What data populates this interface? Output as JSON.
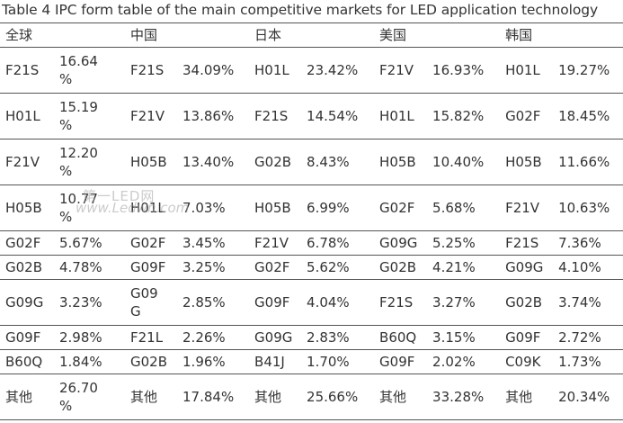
{
  "caption": "Table 4 IPC form table of the main competitive markets for LED application technology",
  "regions": [
    "全球",
    "中国",
    "日本",
    "美国",
    "韩国"
  ],
  "rows": [
    [
      [
        "F21S",
        "16.64\n%"
      ],
      [
        "F21S",
        "34.09%"
      ],
      [
        "H01L",
        "23.42%"
      ],
      [
        "F21V",
        "16.93%"
      ],
      [
        "H01L",
        "19.27%"
      ]
    ],
    [
      [
        "H01L",
        "15.19\n%"
      ],
      [
        "F21V",
        "13.86%"
      ],
      [
        "F21S",
        "14.54%"
      ],
      [
        "H01L",
        "15.82%"
      ],
      [
        "G02F",
        "18.45%"
      ]
    ],
    [
      [
        "F21V",
        "12.20\n%"
      ],
      [
        "H05B",
        "13.40%"
      ],
      [
        "G02B",
        "8.43%"
      ],
      [
        "H05B",
        "10.40%"
      ],
      [
        "H05B",
        "11.66%"
      ]
    ],
    [
      [
        "H05B",
        "10.77\n%"
      ],
      [
        "H01L",
        "7.03%"
      ],
      [
        "H05B",
        "6.99%"
      ],
      [
        "G02F",
        "5.68%"
      ],
      [
        "F21V",
        "10.63%"
      ]
    ],
    [
      [
        "G02F",
        "5.67%"
      ],
      [
        "G02F",
        "3.45%"
      ],
      [
        "F21V",
        "6.78%"
      ],
      [
        "G09G",
        "5.25%"
      ],
      [
        "F21S",
        "7.36%"
      ]
    ],
    [
      [
        "G02B",
        "4.78%"
      ],
      [
        "G09F",
        "3.25%"
      ],
      [
        "G02F",
        "5.62%"
      ],
      [
        "G02B",
        "4.21%"
      ],
      [
        "G09G",
        "4.10%"
      ]
    ],
    [
      [
        "G09G",
        "3.23%"
      ],
      [
        "G09\nG",
        "2.85%"
      ],
      [
        "G09F",
        "4.04%"
      ],
      [
        "F21S",
        "3.27%"
      ],
      [
        "G02B",
        "3.74%"
      ]
    ],
    [
      [
        "G09F",
        "2.98%"
      ],
      [
        "F21L",
        "2.26%"
      ],
      [
        "G09G",
        "2.83%"
      ],
      [
        "B60Q",
        "3.15%"
      ],
      [
        "G09F",
        "2.72%"
      ]
    ],
    [
      [
        "B60Q",
        "1.84%"
      ],
      [
        "G02B",
        "1.96%"
      ],
      [
        "B41J",
        "1.70%"
      ],
      [
        "G09F",
        "2.02%"
      ],
      [
        "C09K",
        "1.73%"
      ]
    ],
    [
      [
        "其他",
        "26.70\n%"
      ],
      [
        "其他",
        "17.84%"
      ],
      [
        "其他",
        "25.66%"
      ],
      [
        "其他",
        "33.28%"
      ],
      [
        "其他",
        "20.34%"
      ]
    ]
  ],
  "row_heights": [
    51,
    51,
    51,
    51,
    27,
    27,
    51,
    27,
    27,
    51
  ],
  "watermark": {
    "cn": "第一LED网",
    "url": "www.Ledwn.com"
  }
}
